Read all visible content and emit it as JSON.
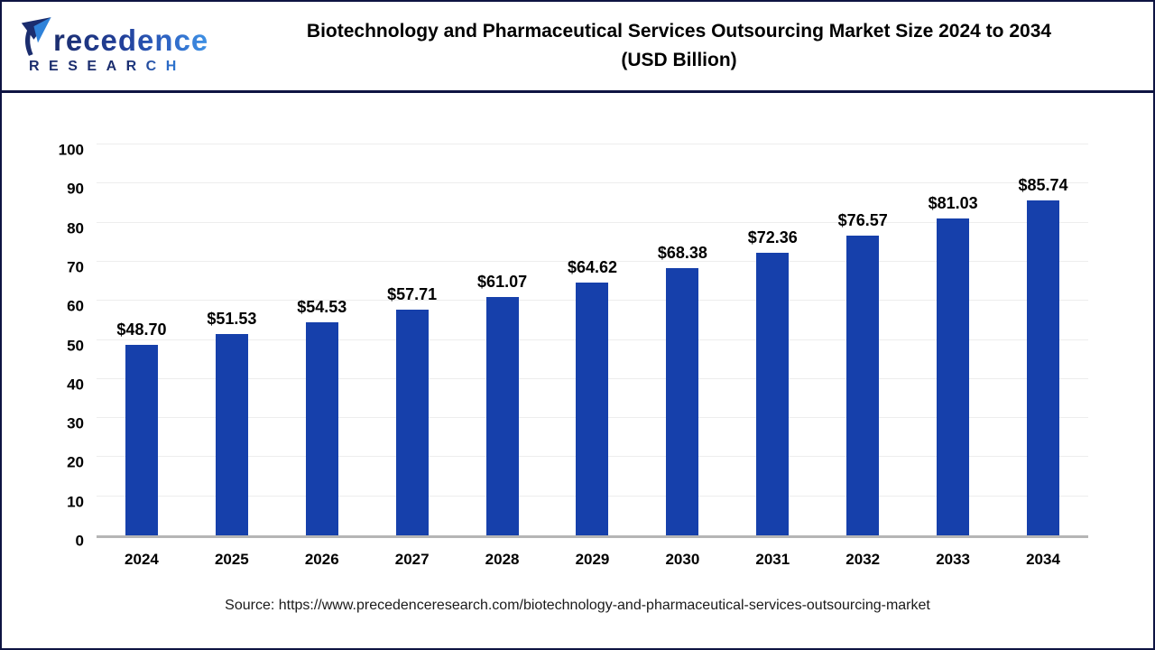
{
  "header": {
    "logo": {
      "brand_name": "Precedence",
      "brand_name_rest": "recedence",
      "brand_subtitle": "RESEARCH"
    },
    "title_line1": "Biotechnology and Pharmaceutical Services Outsourcing Market Size 2024 to 2034",
    "title_line2": "(USD Billion)"
  },
  "chart_data": {
    "type": "bar",
    "title": "Biotechnology and Pharmaceutical Services Outsourcing Market Size 2024 to 2034 (USD Billion)",
    "xlabel": "",
    "ylabel": "",
    "unit": "USD Billion",
    "categories": [
      "2024",
      "2025",
      "2026",
      "2027",
      "2028",
      "2029",
      "2030",
      "2031",
      "2032",
      "2033",
      "2034"
    ],
    "values": [
      48.7,
      51.53,
      54.53,
      57.71,
      61.07,
      64.62,
      68.38,
      72.36,
      76.57,
      81.03,
      85.74
    ],
    "value_labels": [
      "$48.70",
      "$51.53",
      "$54.53",
      "$57.71",
      "$61.07",
      "$64.62",
      "$68.38",
      "$72.36",
      "$76.57",
      "$81.03",
      "$85.74"
    ],
    "ylim": [
      0,
      100
    ],
    "yticks": [
      0,
      10,
      20,
      30,
      40,
      50,
      60,
      70,
      80,
      90,
      100
    ],
    "grid": true,
    "legend": "none",
    "bar_color": "#1640ab"
  },
  "footer": {
    "source_text": "Source: https://www.precedenceresearch.com/biotechnology-and-pharmaceutical-services-outsourcing-market"
  },
  "colors": {
    "bar": "#1640ab",
    "navy_border": "#0e1442",
    "gridline": "#ededed",
    "baseline": "#b5b5b5",
    "logo_navy": "#1b2d6e",
    "logo_blue": "#2f82d9"
  }
}
